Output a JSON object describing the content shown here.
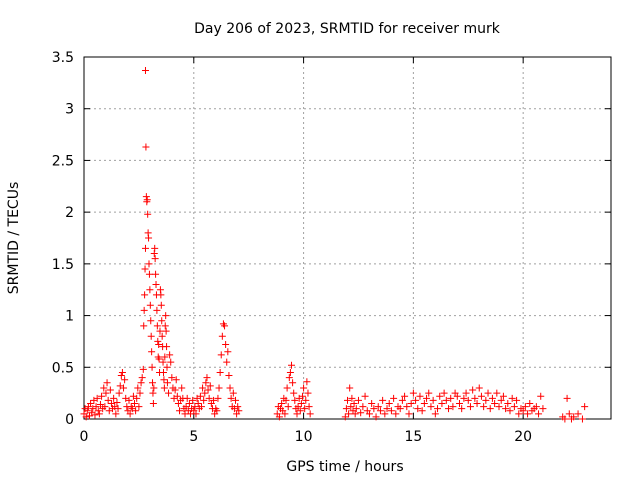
{
  "chart_data": {
    "type": "scatter",
    "title": "Day 206 of 2023, SRMTID for receiver murk",
    "xlabel": "GPS time / hours",
    "ylabel": "SRMTID / TECUs",
    "xlim": [
      0,
      24
    ],
    "ylim": [
      0,
      3.5
    ],
    "xticks": [
      0,
      5,
      10,
      15,
      20
    ],
    "xtick_labels": [
      "0",
      "5",
      "10",
      "15",
      "20"
    ],
    "yticks": [
      0,
      0.5,
      1,
      1.5,
      2,
      2.5,
      3,
      3.5
    ],
    "ytick_labels": [
      "0",
      "0.5",
      "1",
      "1.5",
      "2",
      "2.5",
      "3",
      "3.5"
    ],
    "grid": true,
    "marker": "plus",
    "series": [
      {
        "name": "SRMTID",
        "color": "#ff0000",
        "points": [
          [
            0.0,
            0.05
          ],
          [
            0.05,
            0.1
          ],
          [
            0.1,
            0.02
          ],
          [
            0.15,
            0.08
          ],
          [
            0.2,
            0.12
          ],
          [
            0.25,
            0.03
          ],
          [
            0.3,
            0.15
          ],
          [
            0.35,
            0.06
          ],
          [
            0.4,
            0.1
          ],
          [
            0.45,
            0.18
          ],
          [
            0.5,
            0.04
          ],
          [
            0.55,
            0.12
          ],
          [
            0.6,
            0.2
          ],
          [
            0.65,
            0.08
          ],
          [
            0.7,
            0.05
          ],
          [
            0.75,
            0.14
          ],
          [
            0.8,
            0.22
          ],
          [
            0.85,
            0.1
          ],
          [
            0.9,
            0.3
          ],
          [
            0.95,
            0.12
          ],
          [
            1.0,
            0.25
          ],
          [
            1.05,
            0.35
          ],
          [
            1.1,
            0.18
          ],
          [
            1.15,
            0.08
          ],
          [
            1.2,
            0.28
          ],
          [
            1.25,
            0.15
          ],
          [
            1.3,
            0.1
          ],
          [
            1.35,
            0.2
          ],
          [
            1.4,
            0.12
          ],
          [
            1.45,
            0.05
          ],
          [
            1.5,
            0.16
          ],
          [
            1.55,
            0.1
          ],
          [
            1.6,
            0.25
          ],
          [
            1.65,
            0.32
          ],
          [
            1.7,
            0.42
          ],
          [
            1.75,
            0.45
          ],
          [
            1.8,
            0.3
          ],
          [
            1.85,
            0.38
          ],
          [
            1.9,
            0.2
          ],
          [
            1.95,
            0.12
          ],
          [
            2.0,
            0.08
          ],
          [
            2.05,
            0.18
          ],
          [
            2.1,
            0.05
          ],
          [
            2.15,
            0.12
          ],
          [
            2.2,
            0.1
          ],
          [
            2.25,
            0.22
          ],
          [
            2.3,
            0.15
          ],
          [
            2.35,
            0.08
          ],
          [
            2.4,
            0.2
          ],
          [
            2.45,
            0.3
          ],
          [
            2.5,
            0.12
          ],
          [
            2.55,
            0.25
          ],
          [
            2.6,
            0.35
          ],
          [
            2.65,
            0.4
          ],
          [
            2.7,
            0.48
          ],
          [
            2.72,
            0.9
          ],
          [
            2.74,
            1.05
          ],
          [
            2.76,
            1.2
          ],
          [
            2.78,
            1.45
          ],
          [
            2.8,
            1.65
          ],
          [
            2.8,
            3.37
          ],
          [
            2.82,
            2.63
          ],
          [
            2.84,
            2.15
          ],
          [
            2.86,
            2.1
          ],
          [
            2.88,
            2.12
          ],
          [
            2.9,
            1.98
          ],
          [
            2.92,
            1.8
          ],
          [
            2.94,
            1.75
          ],
          [
            2.96,
            1.5
          ],
          [
            2.98,
            1.4
          ],
          [
            3.0,
            1.25
          ],
          [
            3.02,
            1.1
          ],
          [
            3.04,
            0.95
          ],
          [
            3.06,
            0.8
          ],
          [
            3.08,
            0.65
          ],
          [
            3.1,
            0.5
          ],
          [
            3.12,
            0.35
          ],
          [
            3.14,
            0.25
          ],
          [
            3.16,
            0.15
          ],
          [
            3.18,
            0.3
          ],
          [
            3.2,
            1.6
          ],
          [
            3.22,
            1.65
          ],
          [
            3.24,
            1.55
          ],
          [
            3.26,
            1.4
          ],
          [
            3.28,
            1.3
          ],
          [
            3.3,
            1.2
          ],
          [
            3.32,
            1.05
          ],
          [
            3.34,
            0.9
          ],
          [
            3.36,
            0.75
          ],
          [
            3.38,
            0.6
          ],
          [
            3.4,
            0.72
          ],
          [
            3.42,
            0.58
          ],
          [
            3.44,
            0.45
          ],
          [
            3.46,
            0.85
          ],
          [
            3.48,
            1.25
          ],
          [
            3.5,
            1.2
          ],
          [
            3.52,
            1.1
          ],
          [
            3.54,
            0.95
          ],
          [
            3.56,
            0.8
          ],
          [
            3.58,
            0.7
          ],
          [
            3.6,
            0.55
          ],
          [
            3.62,
            0.45
          ],
          [
            3.64,
            0.38
          ],
          [
            3.66,
            0.3
          ],
          [
            3.68,
            0.6
          ],
          [
            3.7,
            0.9
          ],
          [
            3.72,
            1.0
          ],
          [
            3.74,
            0.85
          ],
          [
            3.76,
            0.7
          ],
          [
            3.78,
            0.5
          ],
          [
            3.8,
            0.35
          ],
          [
            3.85,
            0.25
          ],
          [
            3.9,
            0.62
          ],
          [
            3.95,
            0.55
          ],
          [
            4.0,
            0.4
          ],
          [
            4.05,
            0.3
          ],
          [
            4.1,
            0.2
          ],
          [
            4.15,
            0.28
          ],
          [
            4.2,
            0.38
          ],
          [
            4.25,
            0.22
          ],
          [
            4.3,
            0.15
          ],
          [
            4.35,
            0.08
          ],
          [
            4.4,
            0.18
          ],
          [
            4.45,
            0.3
          ],
          [
            4.5,
            0.2
          ],
          [
            4.55,
            0.1
          ],
          [
            4.6,
            0.05
          ],
          [
            4.65,
            0.12
          ],
          [
            4.7,
            0.2
          ],
          [
            4.75,
            0.08
          ],
          [
            4.8,
            0.15
          ],
          [
            4.85,
            0.05
          ],
          [
            4.9,
            0.1
          ],
          [
            4.95,
            0.18
          ],
          [
            5.0,
            0.08
          ],
          [
            5.05,
            0.12
          ],
          [
            5.1,
            0.05
          ],
          [
            5.15,
            0.2
          ],
          [
            5.2,
            0.15
          ],
          [
            5.25,
            0.1
          ],
          [
            5.3,
            0.22
          ],
          [
            5.35,
            0.12
          ],
          [
            5.4,
            0.3
          ],
          [
            5.45,
            0.18
          ],
          [
            5.5,
            0.25
          ],
          [
            5.55,
            0.35
          ],
          [
            5.6,
            0.4
          ],
          [
            5.65,
            0.28
          ],
          [
            5.7,
            0.2
          ],
          [
            5.75,
            0.32
          ],
          [
            5.8,
            0.15
          ],
          [
            5.85,
            0.1
          ],
          [
            5.9,
            0.18
          ],
          [
            5.95,
            0.05
          ],
          [
            6.0,
            0.1
          ],
          [
            6.05,
            0.08
          ],
          [
            6.1,
            0.2
          ],
          [
            6.15,
            0.3
          ],
          [
            6.2,
            0.45
          ],
          [
            6.25,
            0.62
          ],
          [
            6.3,
            0.8
          ],
          [
            6.35,
            0.92
          ],
          [
            6.4,
            0.9
          ],
          [
            6.45,
            0.72
          ],
          [
            6.5,
            0.55
          ],
          [
            6.55,
            0.65
          ],
          [
            6.6,
            0.42
          ],
          [
            6.65,
            0.3
          ],
          [
            6.7,
            0.2
          ],
          [
            6.75,
            0.12
          ],
          [
            6.8,
            0.25
          ],
          [
            6.85,
            0.1
          ],
          [
            6.9,
            0.18
          ],
          [
            6.95,
            0.05
          ],
          [
            7.0,
            0.12
          ],
          [
            7.05,
            0.08
          ],
          [
            8.8,
            0.05
          ],
          [
            8.85,
            0.12
          ],
          [
            8.9,
            0.02
          ],
          [
            8.95,
            0.1
          ],
          [
            9.0,
            0.15
          ],
          [
            9.05,
            0.08
          ],
          [
            9.1,
            0.2
          ],
          [
            9.15,
            0.05
          ],
          [
            9.2,
            0.18
          ],
          [
            9.25,
            0.3
          ],
          [
            9.3,
            0.12
          ],
          [
            9.35,
            0.4
          ],
          [
            9.4,
            0.45
          ],
          [
            9.45,
            0.52
          ],
          [
            9.5,
            0.35
          ],
          [
            9.55,
            0.25
          ],
          [
            9.6,
            0.18
          ],
          [
            9.65,
            0.1
          ],
          [
            9.7,
            0.05
          ],
          [
            9.75,
            0.12
          ],
          [
            9.8,
            0.2
          ],
          [
            9.85,
            0.08
          ],
          [
            9.9,
            0.15
          ],
          [
            9.95,
            0.22
          ],
          [
            10.0,
            0.3
          ],
          [
            10.05,
            0.1
          ],
          [
            10.1,
            0.18
          ],
          [
            10.15,
            0.36
          ],
          [
            10.2,
            0.25
          ],
          [
            10.25,
            0.12
          ],
          [
            10.3,
            0.05
          ],
          [
            11.9,
            0.02
          ],
          [
            11.95,
            0.1
          ],
          [
            12.0,
            0.18
          ],
          [
            12.05,
            0.05
          ],
          [
            12.1,
            0.3
          ],
          [
            12.15,
            0.12
          ],
          [
            12.2,
            0.2
          ],
          [
            12.25,
            0.08
          ],
          [
            12.3,
            0.15
          ],
          [
            12.35,
            0.05
          ],
          [
            12.4,
            0.1
          ],
          [
            12.5,
            0.18
          ],
          [
            12.6,
            0.06
          ],
          [
            12.7,
            0.12
          ],
          [
            12.8,
            0.22
          ],
          [
            12.9,
            0.08
          ],
          [
            13.0,
            0.05
          ],
          [
            13.1,
            0.15
          ],
          [
            13.2,
            0.1
          ],
          [
            13.3,
            0.02
          ],
          [
            13.4,
            0.12
          ],
          [
            13.5,
            0.08
          ],
          [
            13.6,
            0.18
          ],
          [
            13.7,
            0.05
          ],
          [
            13.8,
            0.1
          ],
          [
            13.9,
            0.15
          ],
          [
            14.0,
            0.08
          ],
          [
            14.1,
            0.2
          ],
          [
            14.2,
            0.05
          ],
          [
            14.3,
            0.12
          ],
          [
            14.4,
            0.1
          ],
          [
            14.5,
            0.18
          ],
          [
            14.6,
            0.22
          ],
          [
            14.7,
            0.12
          ],
          [
            14.8,
            0.05
          ],
          [
            14.9,
            0.15
          ],
          [
            15.0,
            0.25
          ],
          [
            15.1,
            0.18
          ],
          [
            15.2,
            0.1
          ],
          [
            15.3,
            0.22
          ],
          [
            15.4,
            0.08
          ],
          [
            15.5,
            0.15
          ],
          [
            15.6,
            0.2
          ],
          [
            15.7,
            0.25
          ],
          [
            15.8,
            0.12
          ],
          [
            15.9,
            0.18
          ],
          [
            16.0,
            0.05
          ],
          [
            16.1,
            0.1
          ],
          [
            16.2,
            0.22
          ],
          [
            16.3,
            0.15
          ],
          [
            16.4,
            0.25
          ],
          [
            16.5,
            0.18
          ],
          [
            16.6,
            0.1
          ],
          [
            16.7,
            0.2
          ],
          [
            16.8,
            0.12
          ],
          [
            16.9,
            0.25
          ],
          [
            17.0,
            0.22
          ],
          [
            17.1,
            0.15
          ],
          [
            17.2,
            0.1
          ],
          [
            17.3,
            0.2
          ],
          [
            17.4,
            0.25
          ],
          [
            17.5,
            0.18
          ],
          [
            17.6,
            0.12
          ],
          [
            17.7,
            0.28
          ],
          [
            17.8,
            0.2
          ],
          [
            17.9,
            0.15
          ],
          [
            18.0,
            0.3
          ],
          [
            18.1,
            0.22
          ],
          [
            18.2,
            0.12
          ],
          [
            18.3,
            0.18
          ],
          [
            18.4,
            0.25
          ],
          [
            18.5,
            0.1
          ],
          [
            18.6,
            0.2
          ],
          [
            18.7,
            0.15
          ],
          [
            18.8,
            0.25
          ],
          [
            18.9,
            0.12
          ],
          [
            19.0,
            0.18
          ],
          [
            19.1,
            0.22
          ],
          [
            19.2,
            0.1
          ],
          [
            19.3,
            0.15
          ],
          [
            19.4,
            0.08
          ],
          [
            19.5,
            0.2
          ],
          [
            19.6,
            0.12
          ],
          [
            19.7,
            0.18
          ],
          [
            19.8,
            0.05
          ],
          [
            19.9,
            0.1
          ],
          [
            20.0,
            0.08
          ],
          [
            20.1,
            0.12
          ],
          [
            20.2,
            0.05
          ],
          [
            20.3,
            0.15
          ],
          [
            20.4,
            0.08
          ],
          [
            20.5,
            0.1
          ],
          [
            20.6,
            0.12
          ],
          [
            20.7,
            0.05
          ],
          [
            20.8,
            0.22
          ],
          [
            20.9,
            0.1
          ],
          [
            21.8,
            0.02
          ],
          [
            21.9,
            0.0
          ],
          [
            22.0,
            0.2
          ],
          [
            22.1,
            0.05
          ],
          [
            22.2,
            0.0
          ],
          [
            22.3,
            0.02
          ],
          [
            22.5,
            0.05
          ],
          [
            22.7,
            0.0
          ],
          [
            22.8,
            0.12
          ]
        ]
      }
    ]
  }
}
